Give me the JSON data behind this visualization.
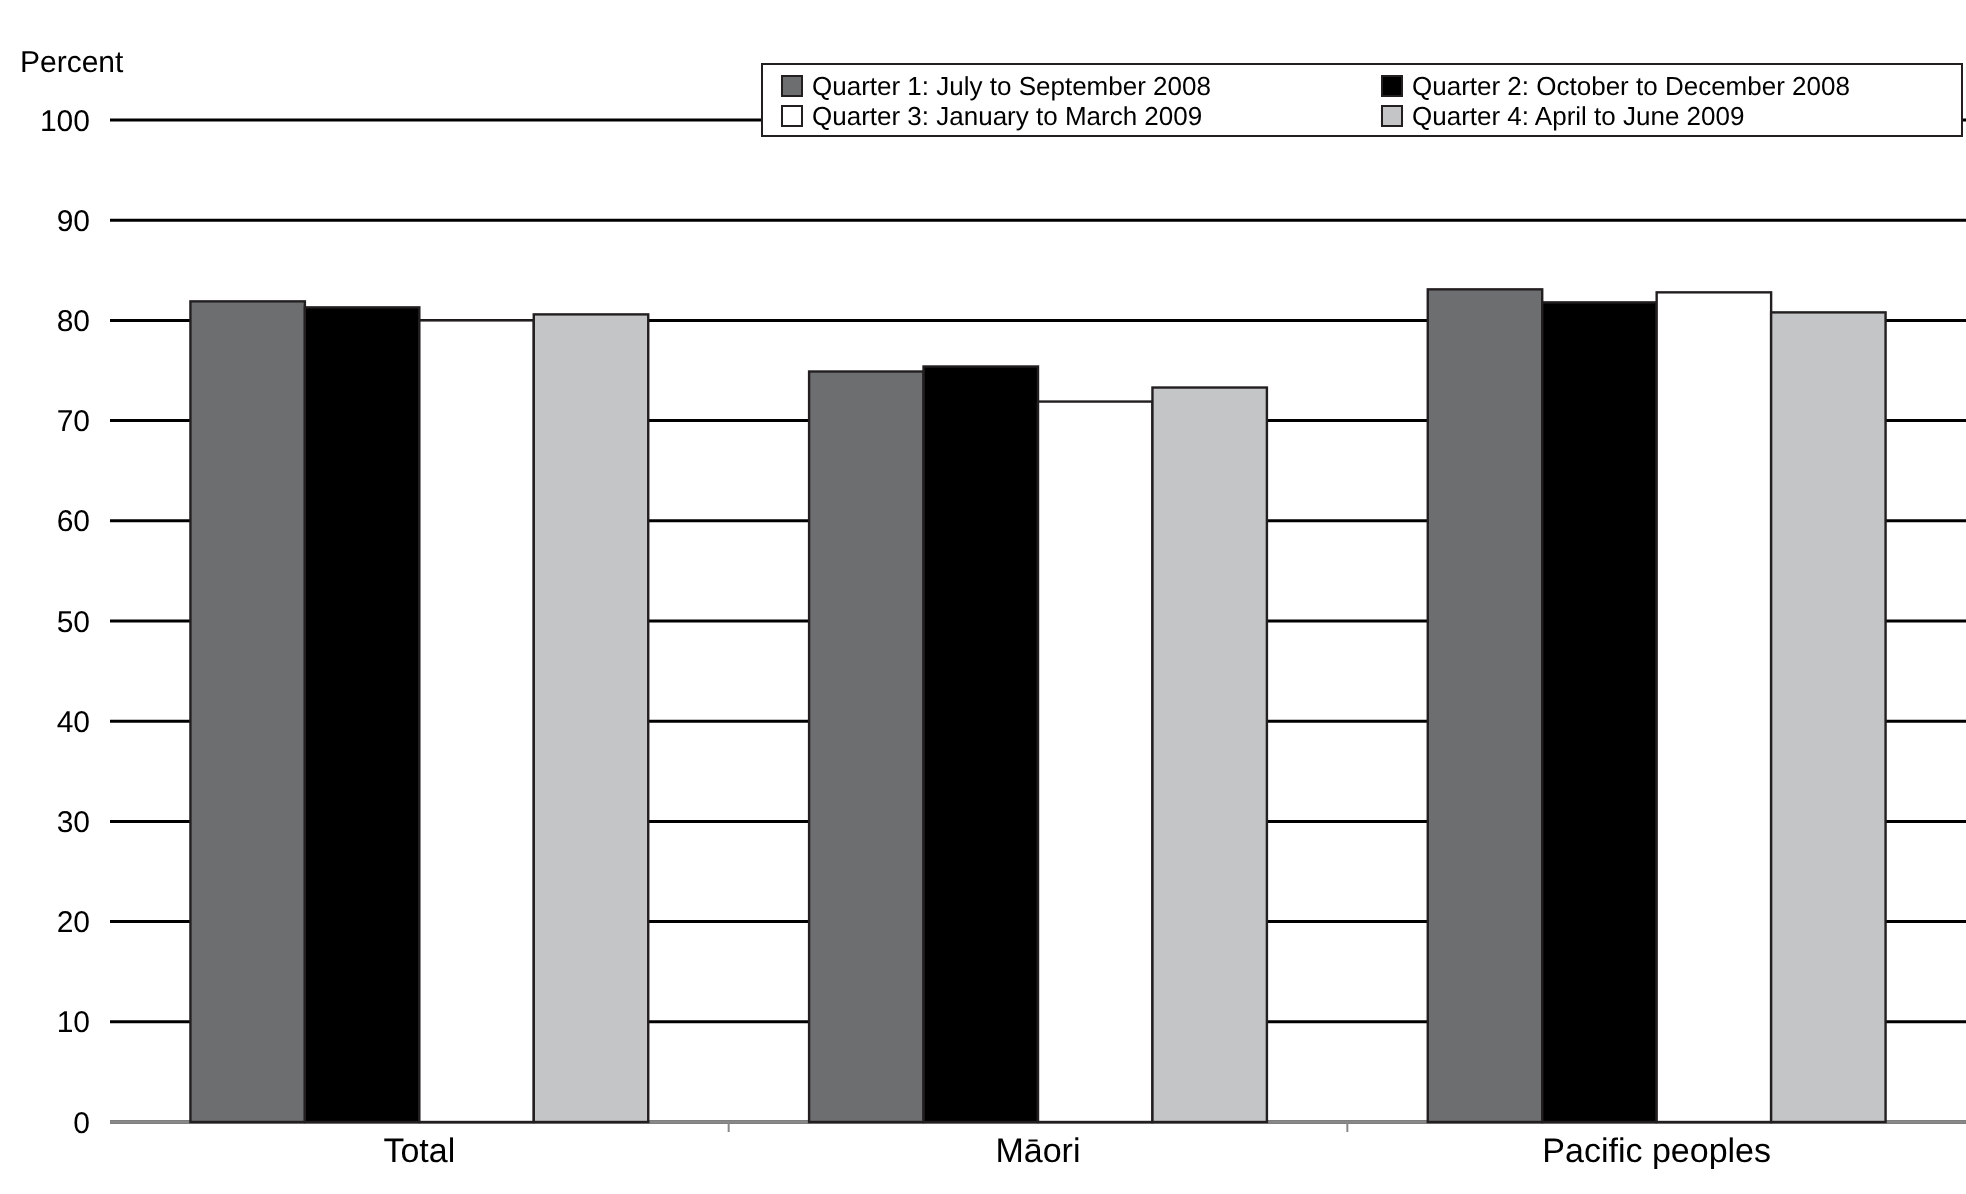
{
  "chart_data": {
    "type": "bar",
    "ylabel": "Percent",
    "categories": [
      "Total",
      "Māori",
      "Pacific peoples"
    ],
    "series": [
      {
        "name": "Quarter 1: July to September 2008",
        "color": "#6d6e70",
        "values": [
          81.9,
          74.9,
          83.1
        ]
      },
      {
        "name": "Quarter 2: October to December 2008",
        "color": "#000000",
        "values": [
          81.3,
          75.4,
          81.8
        ]
      },
      {
        "name": "Quarter 3: January to March 2009",
        "color": "#ffffff",
        "values": [
          80.0,
          71.9,
          82.8
        ]
      },
      {
        "name": "Quarter 4: April to June 2009",
        "color": "#c4c5c7",
        "values": [
          80.6,
          73.3,
          80.8
        ]
      }
    ],
    "ylim": [
      0,
      100
    ],
    "yticks": [
      0,
      10,
      20,
      30,
      40,
      50,
      60,
      70,
      80,
      90,
      100
    ],
    "grid": "y",
    "legend": "top right"
  }
}
